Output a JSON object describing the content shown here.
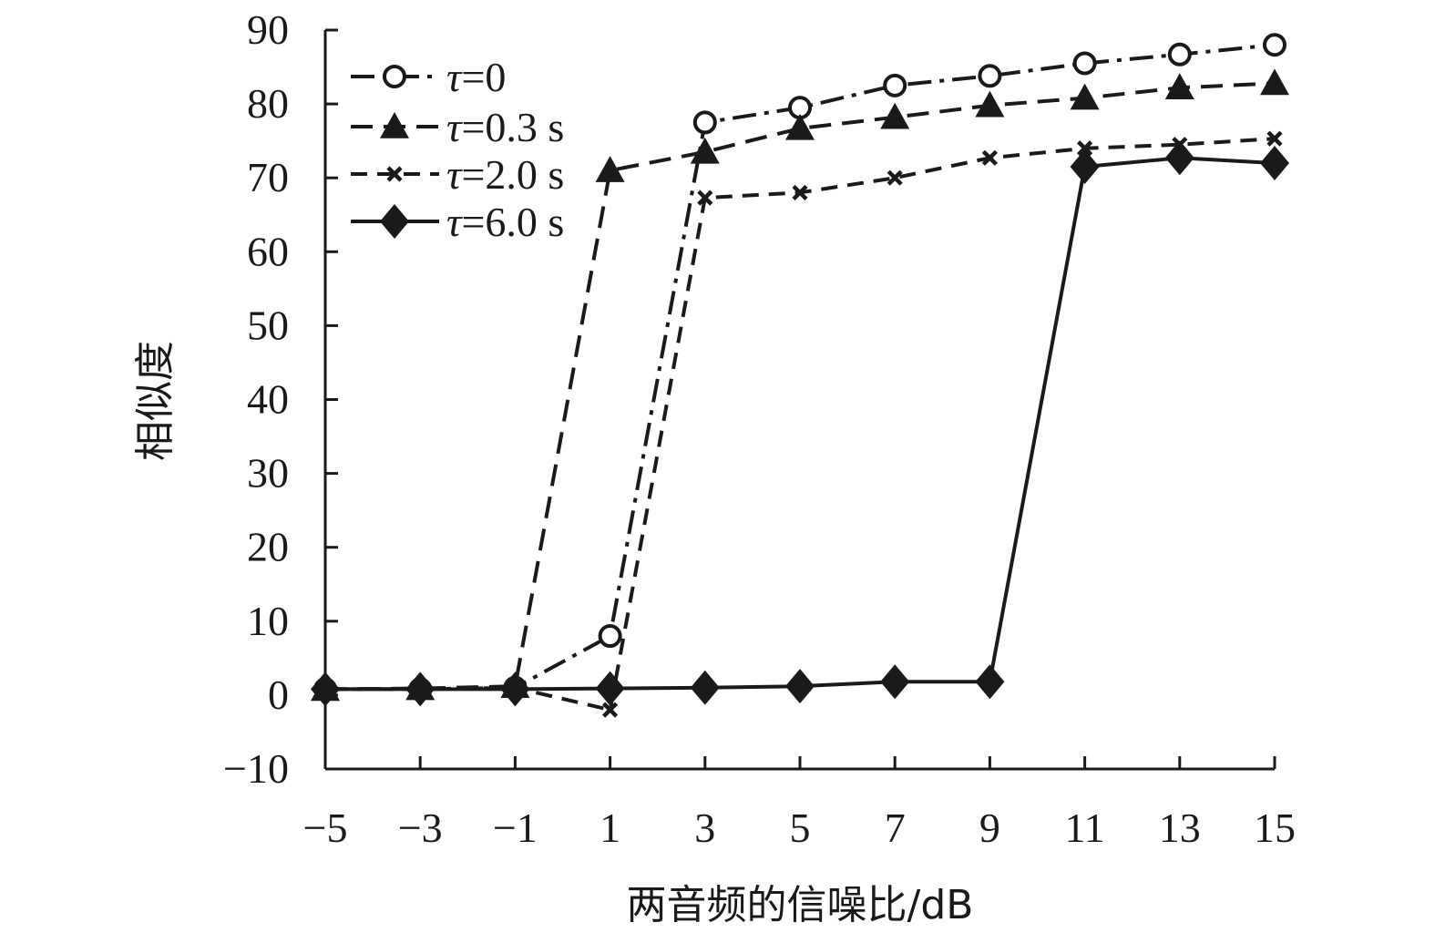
{
  "chart_data": {
    "type": "line",
    "title": "",
    "xlabel": "两音频的信噪比/dB",
    "ylabel": "相似度",
    "x": [
      -5,
      -3,
      -1,
      1,
      3,
      5,
      7,
      9,
      11,
      13,
      15
    ],
    "x_tick_labels": [
      "−5",
      "−3",
      "−1",
      "1",
      "3",
      "5",
      "7",
      "9",
      "11",
      "13",
      "15"
    ],
    "y_ticks": [
      -10,
      0,
      10,
      20,
      30,
      40,
      50,
      60,
      70,
      80,
      90
    ],
    "y_tick_labels": [
      "−10",
      "0",
      "10",
      "20",
      "30",
      "40",
      "50",
      "60",
      "70",
      "80",
      "90"
    ],
    "xlim": [
      -5,
      15
    ],
    "ylim": [
      -10,
      90
    ],
    "grid": false,
    "legend_position": "top-left",
    "series": [
      {
        "name": "τ=0",
        "legend_symbol": "τ",
        "legend_value": "=0",
        "marker": "open-circle",
        "line_style": "dash-dot",
        "values": [
          0.8,
          0.8,
          1.0,
          8.0,
          77.5,
          79.5,
          82.5,
          83.8,
          85.5,
          86.7,
          88.0
        ]
      },
      {
        "name": "τ=0.3 s",
        "legend_symbol": "τ",
        "legend_value": "=0.3 s",
        "marker": "filled-triangle",
        "line_style": "long-dash",
        "values": [
          0.8,
          0.9,
          1.2,
          71.0,
          73.5,
          76.7,
          78.2,
          79.8,
          80.8,
          82.2,
          82.8
        ]
      },
      {
        "name": "τ=2.0 s",
        "legend_symbol": "τ",
        "legend_value": "=2.0 s",
        "marker": "x-cross",
        "line_style": "dash",
        "values": [
          0.8,
          0.8,
          1.0,
          -2.0,
          67.3,
          68.0,
          70.0,
          72.7,
          74.0,
          74.5,
          75.3
        ]
      },
      {
        "name": "τ=6.0 s",
        "legend_symbol": "τ",
        "legend_value": "=6.0 s",
        "marker": "filled-diamond",
        "line_style": "solid",
        "values": [
          0.8,
          0.8,
          0.8,
          0.9,
          1.0,
          1.2,
          1.8,
          1.8,
          71.5,
          72.7,
          72.0
        ]
      }
    ],
    "colors": {
      "line": "#1a1a1a",
      "background": "#ffffff"
    }
  }
}
